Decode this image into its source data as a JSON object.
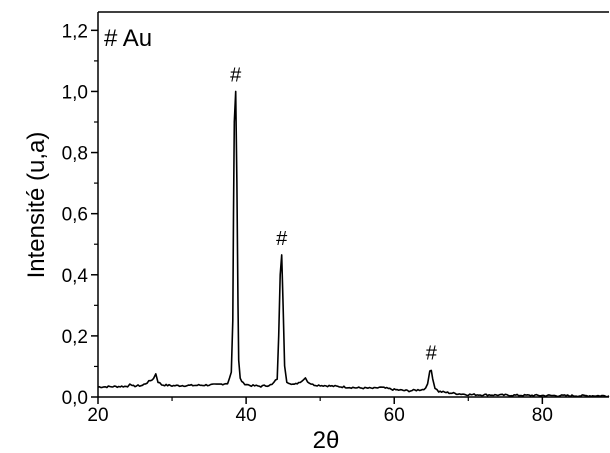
{
  "chart_data": {
    "type": "line",
    "xlabel": "2θ",
    "ylabel": "Intensité (u,a)",
    "xlim": [
      20,
      89
    ],
    "ylim": [
      0,
      1.26
    ],
    "x_ticks": [
      20,
      40,
      60,
      80
    ],
    "x_tick_labels": [
      "20",
      "40",
      "60",
      "80"
    ],
    "y_ticks": [
      0,
      0.2,
      0.4,
      0.6,
      0.8,
      1.0,
      1.2
    ],
    "y_tick_labels": [
      "0,0",
      "0,2",
      "0,4",
      "0,6",
      "0,8",
      "1,0",
      "1,2"
    ],
    "legend_text": "# Au",
    "legend_position": "top-left",
    "grid": false,
    "line_color": "#000000",
    "series": [
      {
        "x": [
          20,
          22,
          24,
          24.3,
          24.6,
          26,
          27.5,
          27.8,
          28.1,
          28.6,
          30,
          33,
          36,
          37.5,
          38.0,
          38.2,
          38.3,
          38.4,
          38.6,
          38.75,
          38.9,
          39.0,
          39.2,
          39.6,
          40.5,
          42,
          43.5,
          44.2,
          44.4,
          44.6,
          44.8,
          45.0,
          45.2,
          45.5,
          46.5,
          47.7,
          48.0,
          48.3,
          49,
          52,
          55,
          57.5,
          58,
          60,
          62,
          64,
          64.5,
          64.8,
          65.0,
          65.2,
          65.5,
          66,
          68,
          70,
          75,
          80,
          85,
          89
        ],
        "y": [
          0.033,
          0.034,
          0.035,
          0.045,
          0.035,
          0.038,
          0.06,
          0.077,
          0.05,
          0.04,
          0.037,
          0.038,
          0.04,
          0.045,
          0.08,
          0.25,
          0.6,
          0.9,
          1.0,
          0.7,
          0.3,
          0.12,
          0.06,
          0.045,
          0.038,
          0.035,
          0.04,
          0.06,
          0.2,
          0.4,
          0.465,
          0.3,
          0.1,
          0.05,
          0.04,
          0.055,
          0.065,
          0.05,
          0.04,
          0.035,
          0.03,
          0.028,
          0.032,
          0.024,
          0.02,
          0.025,
          0.04,
          0.085,
          0.09,
          0.06,
          0.03,
          0.018,
          0.012,
          0.008,
          0.006,
          0.005,
          0.004,
          0.004
        ]
      }
    ],
    "annotations": [
      {
        "text": "#",
        "x": 38.6,
        "y": 1.0
      },
      {
        "text": "#",
        "x": 44.8,
        "y": 0.465
      },
      {
        "text": "#",
        "x": 65.0,
        "y": 0.09
      }
    ]
  }
}
